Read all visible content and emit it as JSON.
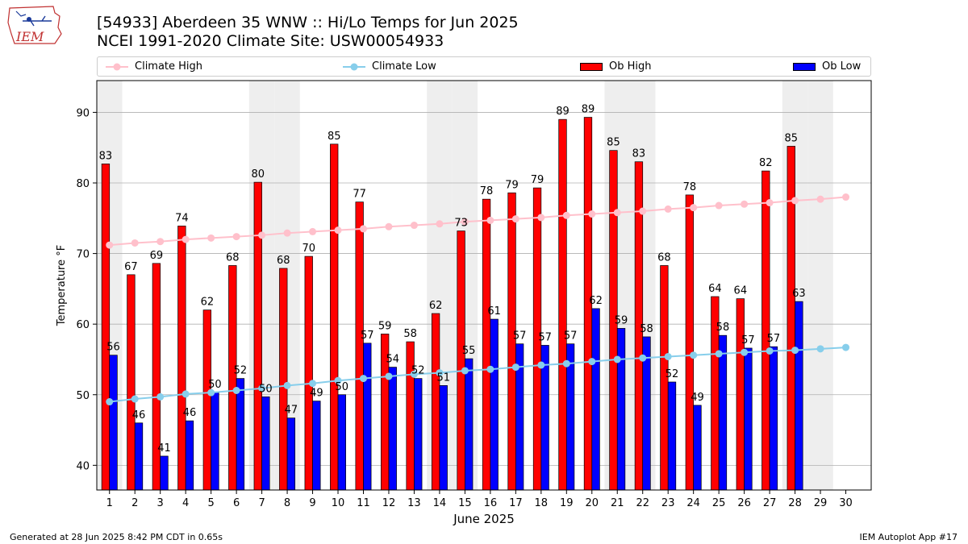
{
  "header": {
    "title_line1": "[54933] Aberdeen 35 WNW :: Hi/Lo Temps for Jun 2025",
    "title_line2": "NCEI 1991-2020 Climate Site: USW00054933",
    "logo_text": "IEM"
  },
  "legend": {
    "items": [
      {
        "label": "Climate High",
        "color": "#ffc0cb",
        "kind": "line"
      },
      {
        "label": "Climate Low",
        "color": "#87ceeb",
        "kind": "line"
      },
      {
        "label": "Ob High",
        "color": "#ff0000",
        "kind": "bar"
      },
      {
        "label": "Ob Low",
        "color": "#0000ff",
        "kind": "bar"
      }
    ]
  },
  "chart_data": {
    "type": "bar",
    "xlabel": "June 2025",
    "ylabel": "Temperature °F",
    "ylim": [
      36.5,
      94.5
    ],
    "yticks": [
      40,
      50,
      60,
      70,
      80,
      90
    ],
    "grid": "horizontal",
    "legend_position": "top",
    "categories": [
      "1",
      "2",
      "3",
      "4",
      "5",
      "6",
      "7",
      "8",
      "9",
      "10",
      "11",
      "12",
      "13",
      "14",
      "15",
      "16",
      "17",
      "18",
      "19",
      "20",
      "21",
      "22",
      "23",
      "24",
      "25",
      "26",
      "27",
      "28",
      "29",
      "30"
    ],
    "shaded_days": [
      1,
      7,
      8,
      14,
      15,
      21,
      22,
      28,
      29
    ],
    "series": [
      {
        "name": "Ob High",
        "type": "bar",
        "color": "#ff0000",
        "values": [
          82.7,
          67.0,
          68.6,
          73.9,
          62.0,
          68.3,
          80.1,
          67.9,
          69.6,
          85.5,
          77.3,
          58.6,
          57.5,
          61.5,
          73.2,
          77.7,
          78.6,
          79.3,
          89.0,
          89.3,
          84.6,
          83.0,
          68.3,
          78.3,
          63.9,
          63.6,
          81.7,
          85.2,
          null,
          null
        ],
        "labels": [
          "83",
          "67",
          "69",
          "74",
          "62",
          "68",
          "80",
          "68",
          "70",
          "85",
          "77",
          "59",
          "58",
          "62",
          "73",
          "78",
          "79",
          "79",
          "89",
          "89",
          "85",
          "83",
          "68",
          "78",
          "64",
          "64",
          "82",
          "85",
          "",
          ""
        ]
      },
      {
        "name": "Ob Low",
        "type": "bar",
        "color": "#0000ff",
        "values": [
          55.6,
          46.0,
          41.3,
          46.3,
          50.3,
          52.3,
          49.7,
          46.7,
          49.1,
          50.0,
          57.3,
          53.9,
          52.3,
          51.3,
          55.1,
          60.7,
          57.2,
          57.0,
          57.2,
          62.2,
          59.4,
          58.2,
          51.8,
          48.5,
          58.4,
          56.6,
          56.8,
          63.2,
          null,
          null
        ],
        "labels": [
          "56",
          "46",
          "41",
          "46",
          "50",
          "52",
          "50",
          "47",
          "49",
          "50",
          "57",
          "54",
          "52",
          "51",
          "55",
          "61",
          "57",
          "57",
          "57",
          "62",
          "59",
          "58",
          "52",
          "49",
          "58",
          "57",
          "57",
          "63",
          "",
          ""
        ]
      },
      {
        "name": "Climate High",
        "type": "line",
        "color": "#ffc0cb",
        "values": [
          71.2,
          71.5,
          71.7,
          72.0,
          72.2,
          72.4,
          72.6,
          72.9,
          73.1,
          73.3,
          73.5,
          73.8,
          74.0,
          74.2,
          74.5,
          74.7,
          74.9,
          75.1,
          75.4,
          75.6,
          75.8,
          76.0,
          76.3,
          76.5,
          76.8,
          77.0,
          77.2,
          77.5,
          77.7,
          78.0
        ]
      },
      {
        "name": "Climate Low",
        "type": "line",
        "color": "#87ceeb",
        "values": [
          49.0,
          49.4,
          49.7,
          50.1,
          50.3,
          50.6,
          50.9,
          51.3,
          51.6,
          52.0,
          52.3,
          52.6,
          52.9,
          53.1,
          53.4,
          53.6,
          53.9,
          54.2,
          54.4,
          54.7,
          55.0,
          55.2,
          55.4,
          55.6,
          55.8,
          56.0,
          56.2,
          56.3,
          56.5,
          56.7
        ]
      }
    ]
  },
  "footer": {
    "left": "Generated at 28 Jun 2025 8:42 PM CDT in 0.65s",
    "right": "IEM Autoplot App #17"
  }
}
